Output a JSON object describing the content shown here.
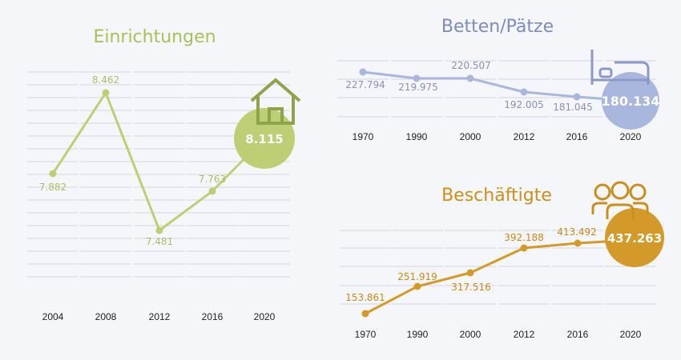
{
  "chart_data": [
    {
      "id": "einrichtungen",
      "type": "line",
      "title": "Einrichtungen",
      "categories": [
        "2004",
        "2008",
        "2012",
        "2016",
        "2020"
      ],
      "values": [
        7882,
        8462,
        7481,
        7763,
        8115
      ],
      "value_labels": [
        "7.882",
        "8.462",
        "7.481",
        "7.763",
        "8.115"
      ],
      "highlight_index": 4,
      "highlight_icon": "house-icon",
      "ylim": [
        7200,
        8700
      ],
      "grid": true,
      "color": "#bccf74",
      "title_color": "#a6c15b",
      "label_color": "#a9c06b"
    },
    {
      "id": "betten",
      "type": "line",
      "title": "Betten/Pätze",
      "categories": [
        "1970",
        "1990",
        "2000",
        "2012",
        "2016",
        "2020"
      ],
      "values": [
        227794,
        219975,
        220507,
        192005,
        181045,
        180134
      ],
      "value_labels": [
        "227.794",
        "219.975",
        "220.507",
        "192.005",
        "181.045",
        "180.134"
      ],
      "highlight_index": 5,
      "highlight_icon": "bed-icon",
      "ylim": [
        150000,
        260000
      ],
      "grid": true,
      "color": "#a9b7de",
      "title_color": "#7d8bbd",
      "label_color": "#8892b5"
    },
    {
      "id": "beschaeftigte",
      "type": "line",
      "title": "Beschäftigte",
      "categories": [
        "1970",
        "1990",
        "2000",
        "2012",
        "2016",
        "2020"
      ],
      "values": [
        153861,
        251919,
        317516,
        392188,
        413492,
        437263
      ],
      "value_labels": [
        "153.861",
        "251.919",
        "317.516",
        "392.188",
        "413.492",
        "437.263"
      ],
      "highlight_index": 5,
      "highlight_icon": "people-icon",
      "ylim": [
        150000,
        500000
      ],
      "grid": true,
      "color": "#d49a29",
      "title_color": "#cd8f1e",
      "label_color": "#c88a1e"
    }
  ]
}
